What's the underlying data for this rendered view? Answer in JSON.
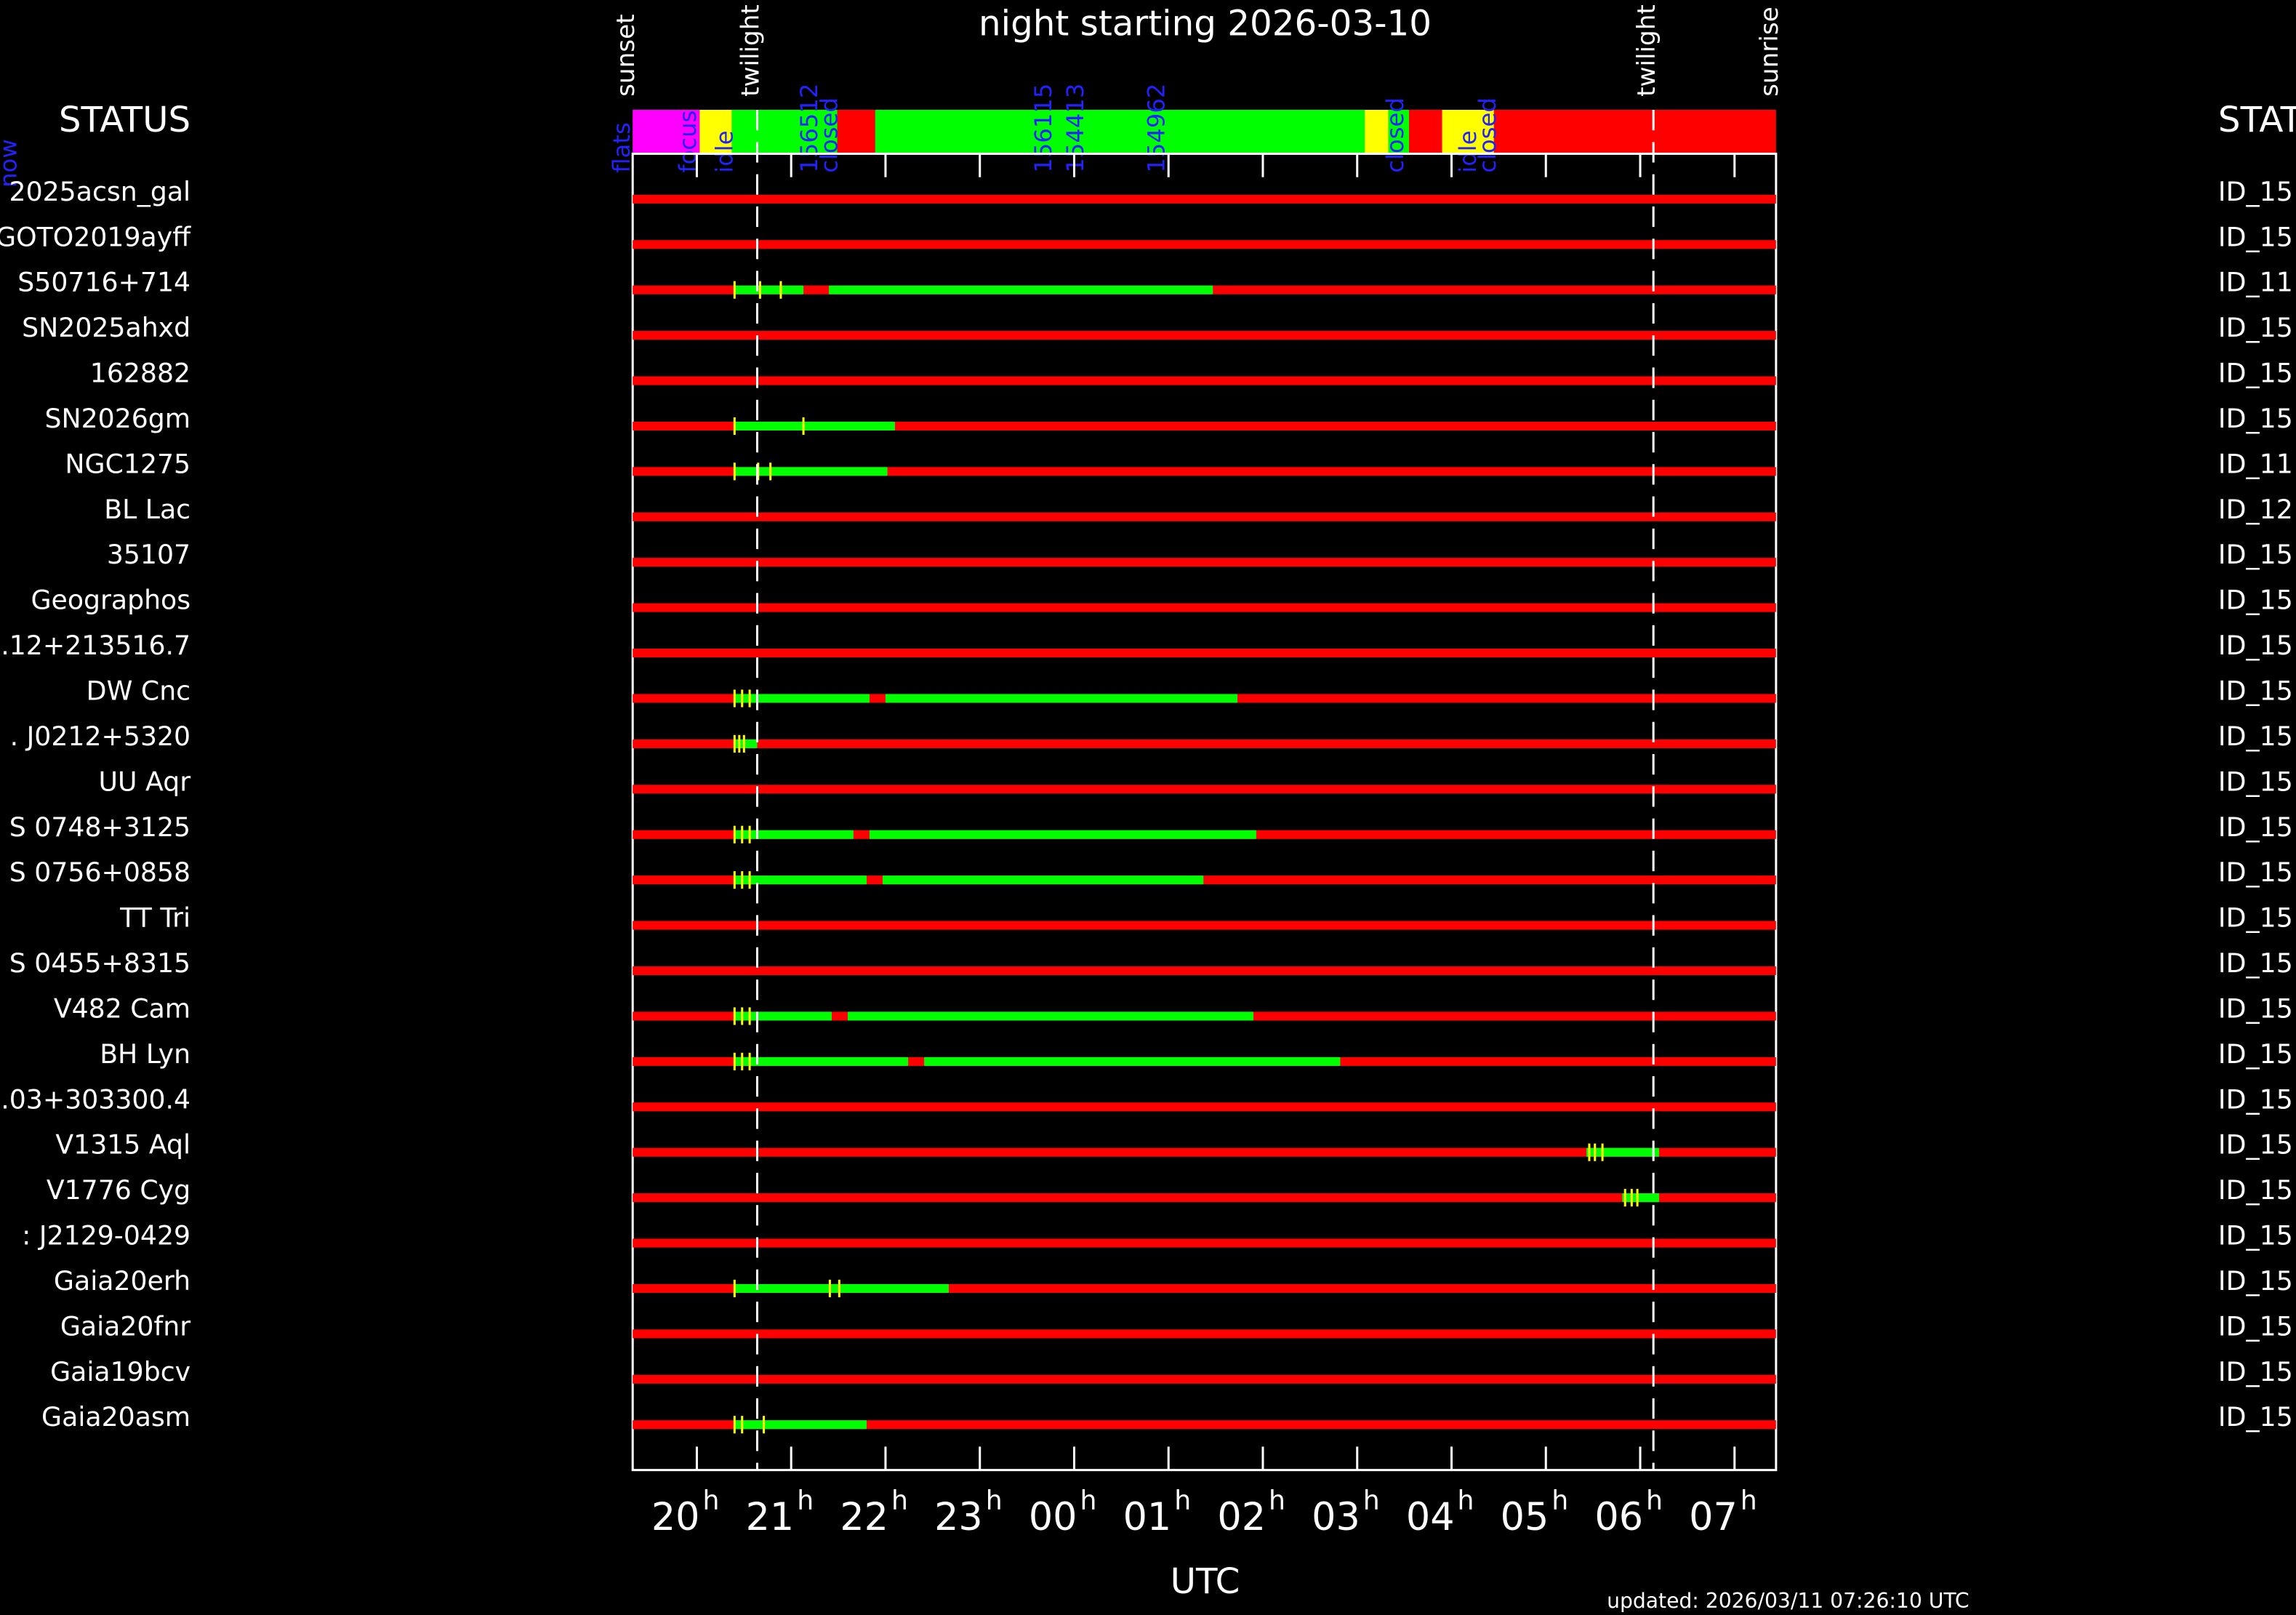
{
  "chart_data": {
    "type": "timeline",
    "title": "night starting 2026-03-10",
    "xlabel": "UTC",
    "updated": "updated: 2026/03/11 07:26:10 UTC",
    "status_header": "STATUS",
    "right_header": "STAT",
    "now_label": "now",
    "xlim": [
      19.32,
      31.44
    ],
    "xticks": [
      {
        "value": 20,
        "label": "20"
      },
      {
        "value": 21,
        "label": "21"
      },
      {
        "value": 22,
        "label": "22"
      },
      {
        "value": 23,
        "label": "23"
      },
      {
        "value": 24,
        "label": "00"
      },
      {
        "value": 25,
        "label": "01"
      },
      {
        "value": 26,
        "label": "02"
      },
      {
        "value": 27,
        "label": "03"
      },
      {
        "value": 28,
        "label": "04"
      },
      {
        "value": 29,
        "label": "05"
      },
      {
        "value": 30,
        "label": "06"
      },
      {
        "value": 31,
        "label": "07"
      }
    ],
    "xtick_unit": "h",
    "colors": {
      "scheduled": "#00ff00",
      "unscheduled": "#ff0000",
      "marker": "#ffff00",
      "status_text": "#2222ff"
    },
    "events": [
      {
        "label": "sunset",
        "time": 19.32
      },
      {
        "label": "twilight",
        "time": 20.64
      },
      {
        "label": "twilight",
        "time": 30.14
      },
      {
        "label": "sunrise",
        "time": 31.44
      }
    ],
    "status_bar": [
      {
        "start": 19.32,
        "end": 20.03,
        "color": "#ff00ff"
      },
      {
        "start": 20.03,
        "end": 20.37,
        "color": "#ffff00"
      },
      {
        "start": 20.37,
        "end": 21.49,
        "color": "#00ff00"
      },
      {
        "start": 21.49,
        "end": 21.89,
        "color": "#ff0000"
      },
      {
        "start": 21.89,
        "end": 27.08,
        "color": "#00ff00"
      },
      {
        "start": 27.08,
        "end": 27.33,
        "color": "#ffff00"
      },
      {
        "start": 27.33,
        "end": 27.55,
        "color": "#00ff00"
      },
      {
        "start": 27.55,
        "end": 27.9,
        "color": "#ff0000"
      },
      {
        "start": 27.9,
        "end": 28.45,
        "color": "#ffff00"
      },
      {
        "start": 28.45,
        "end": 31.44,
        "color": "#ff0000"
      }
    ],
    "status_labels": [
      {
        "text": "flats",
        "time": 19.21
      },
      {
        "text": "focus",
        "time": 19.91
      },
      {
        "text": "idle",
        "time": 20.3
      },
      {
        "text": "156512",
        "time": 21.2
      },
      {
        "text": "closed",
        "time": 21.41
      },
      {
        "text": "156115",
        "time": 23.68
      },
      {
        "text": "154413",
        "time": 24.02
      },
      {
        "text": "154962",
        "time": 24.88
      },
      {
        "text": "closed",
        "time": 27.41
      },
      {
        "text": "idle",
        "time": 28.18
      },
      {
        "text": "closed",
        "time": 28.39
      }
    ],
    "rows": [
      {
        "name": "2025acsn_gal",
        "id": "ID_15",
        "segments": [],
        "markers": []
      },
      {
        "name": "GOTO2019ayff",
        "id": "ID_15",
        "segments": [],
        "markers": []
      },
      {
        "name": "S50716+714",
        "id": "ID_11",
        "segments": [
          [
            20.4,
            21.13
          ],
          [
            21.4,
            25.47
          ]
        ],
        "markers": [
          20.4,
          20.67,
          20.89
        ]
      },
      {
        "name": "SN2025ahxd",
        "id": "ID_15",
        "segments": [],
        "markers": []
      },
      {
        "name": "162882",
        "id": "ID_15",
        "segments": [],
        "markers": []
      },
      {
        "name": "SN2026gm",
        "id": "ID_15",
        "segments": [
          [
            20.4,
            22.1
          ]
        ],
        "markers": [
          20.4,
          21.13
        ]
      },
      {
        "name": "NGC1275",
        "id": "ID_11",
        "segments": [
          [
            20.4,
            22.02
          ]
        ],
        "markers": [
          20.4,
          20.65,
          20.78
        ]
      },
      {
        "name": "BL Lac",
        "id": "ID_12",
        "segments": [],
        "markers": []
      },
      {
        "name": "35107",
        "id": "ID_15",
        "segments": [],
        "markers": []
      },
      {
        "name": "Geographos",
        "id": "ID_15",
        "segments": [],
        "markers": []
      },
      {
        "name": ".12+213516.7",
        "id": "ID_15",
        "segments": [],
        "markers": []
      },
      {
        "name": "DW Cnc",
        "id": "ID_15",
        "segments": [
          [
            20.4,
            21.83
          ],
          [
            22.0,
            25.73
          ]
        ],
        "markers": [
          20.4,
          20.48,
          20.56
        ]
      },
      {
        "name": ". J0212+5320",
        "id": "ID_15",
        "segments": [
          [
            20.4,
            20.64
          ]
        ],
        "markers": [
          20.4,
          20.45,
          20.5
        ]
      },
      {
        "name": "UU Aqr",
        "id": "ID_15",
        "segments": [],
        "markers": []
      },
      {
        "name": "S 0748+3125",
        "id": "ID_15",
        "segments": [
          [
            20.4,
            21.66
          ],
          [
            21.83,
            25.93
          ]
        ],
        "markers": [
          20.4,
          20.48,
          20.56
        ]
      },
      {
        "name": "S 0756+0858",
        "id": "ID_15",
        "segments": [
          [
            20.4,
            21.8
          ],
          [
            21.97,
            25.37
          ]
        ],
        "markers": [
          20.4,
          20.48,
          20.56
        ]
      },
      {
        "name": "TT Tri",
        "id": "ID_15",
        "segments": [],
        "markers": []
      },
      {
        "name": "S 0455+8315",
        "id": "ID_15",
        "segments": [],
        "markers": []
      },
      {
        "name": "V482 Cam",
        "id": "ID_15",
        "segments": [
          [
            20.4,
            21.43
          ],
          [
            21.6,
            25.9
          ]
        ],
        "markers": [
          20.4,
          20.48,
          20.56
        ]
      },
      {
        "name": "BH Lyn",
        "id": "ID_15",
        "segments": [
          [
            20.4,
            22.24
          ],
          [
            22.41,
            26.82
          ]
        ],
        "markers": [
          20.4,
          20.48,
          20.56
        ]
      },
      {
        "name": ".03+303300.4",
        "id": "ID_15",
        "segments": [],
        "markers": []
      },
      {
        "name": "V1315 Aql",
        "id": "ID_15",
        "segments": [
          [
            29.43,
            30.2
          ]
        ],
        "markers": [
          29.46,
          29.52,
          29.6
        ]
      },
      {
        "name": "V1776 Cyg",
        "id": "ID_15",
        "segments": [
          [
            29.81,
            30.2
          ]
        ],
        "markers": [
          29.84,
          29.91,
          29.97
        ]
      },
      {
        "name": ": J2129-0429",
        "id": "ID_15",
        "segments": [],
        "markers": []
      },
      {
        "name": "Gaia20erh",
        "id": "ID_15",
        "segments": [
          [
            20.4,
            22.67
          ]
        ],
        "markers": [
          20.4,
          21.41,
          21.51
        ]
      },
      {
        "name": "Gaia20fnr",
        "id": "ID_15",
        "segments": [],
        "markers": []
      },
      {
        "name": "Gaia19bcv",
        "id": "ID_15",
        "segments": [],
        "markers": []
      },
      {
        "name": "Gaia20asm",
        "id": "ID_15",
        "segments": [
          [
            20.4,
            21.8
          ]
        ],
        "markers": [
          20.4,
          20.48,
          20.71
        ]
      }
    ]
  }
}
